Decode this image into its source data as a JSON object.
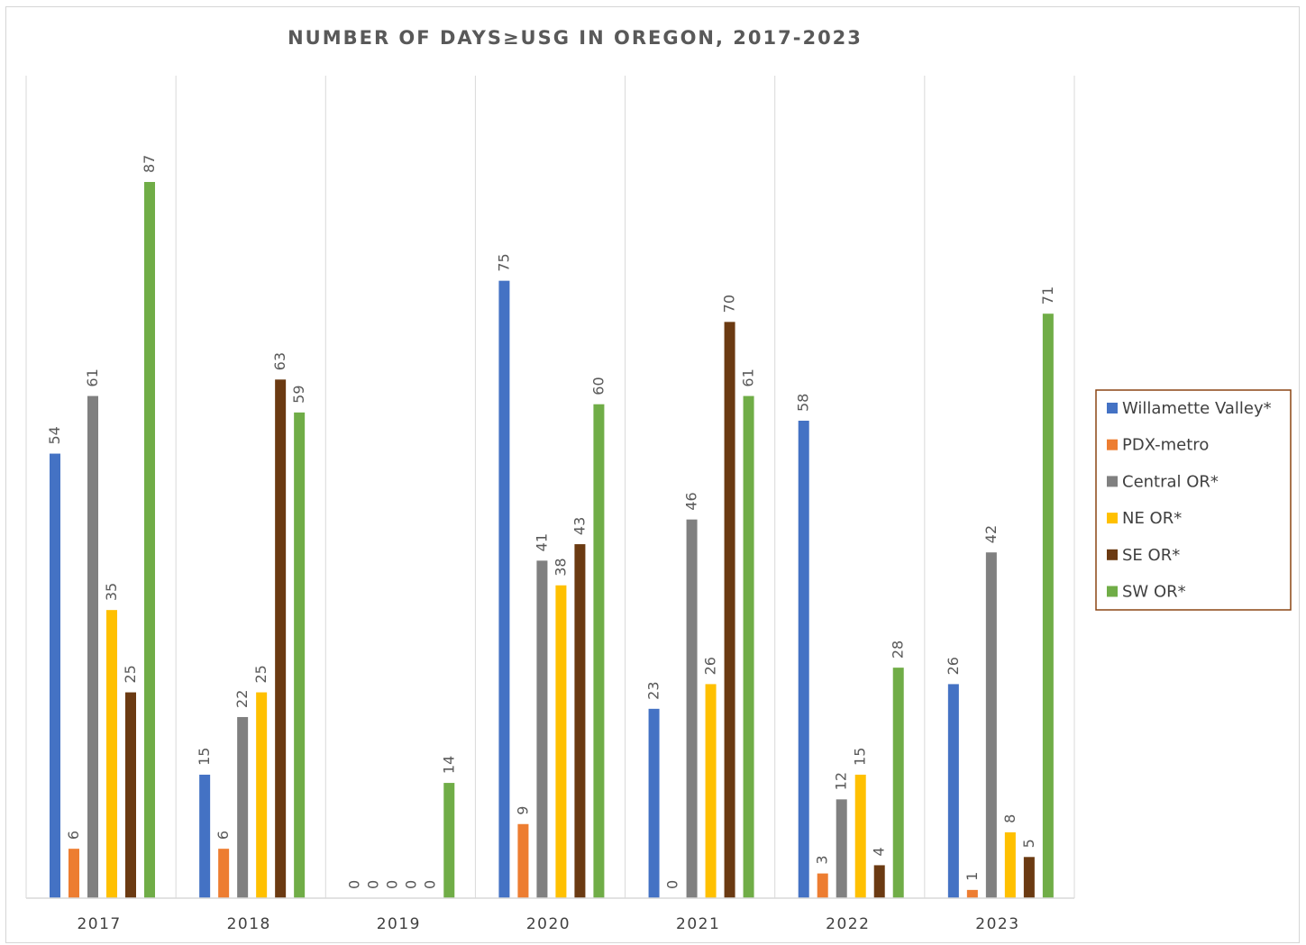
{
  "chart_data": {
    "type": "bar",
    "title": "NUMBER OF DAYS≥USG IN OREGON, 2017-2023",
    "xlabel": "",
    "ylabel": "",
    "ylim": [
      0,
      95
    ],
    "grid": {
      "vertical_category_separators": true,
      "horizontal": false
    },
    "legend_position": "right",
    "categories": [
      "2017",
      "2018",
      "2019",
      "2020",
      "2021",
      "2022",
      "2023"
    ],
    "series": [
      {
        "name": "Willamette Valley*",
        "color": "#4472C4",
        "values": [
          54,
          15,
          0,
          75,
          23,
          58,
          26
        ]
      },
      {
        "name": "PDX-metro",
        "color": "#ED7D31",
        "values": [
          6,
          6,
          0,
          9,
          0,
          3,
          1
        ]
      },
      {
        "name": "Central OR*",
        "color": "#808080",
        "values": [
          61,
          22,
          0,
          41,
          46,
          12,
          42
        ]
      },
      {
        "name": "NE OR*",
        "color": "#FFC000",
        "values": [
          35,
          25,
          0,
          38,
          26,
          15,
          8
        ]
      },
      {
        "name": "SE OR*",
        "color": "#6B3A12",
        "values": [
          25,
          63,
          0,
          43,
          70,
          4,
          5
        ]
      },
      {
        "name": "SW OR*",
        "color": "#70AD47",
        "values": [
          87,
          59,
          14,
          60,
          61,
          28,
          71
        ]
      }
    ],
    "legend_border_color": "#8B4513"
  }
}
